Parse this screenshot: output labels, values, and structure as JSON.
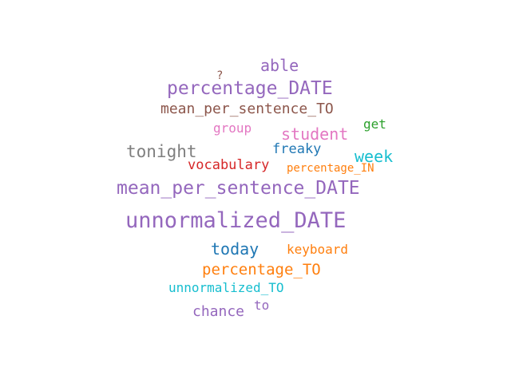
{
  "words": [
    {
      "text": "able",
      "color": "#9467bd"
    },
    {
      "text": "?",
      "color": "#8c564b"
    },
    {
      "text": "percentage_DATE",
      "color": "#9467bd"
    },
    {
      "text": "mean_per_sentence_TO",
      "color": "#8c564b"
    },
    {
      "text": "group",
      "color": "#e377c2"
    },
    {
      "text": "student",
      "color": "#e377c2"
    },
    {
      "text": "get",
      "color": "#2ca02c"
    },
    {
      "text": "tonight",
      "color": "#7f7f7f"
    },
    {
      "text": "freaky",
      "color": "#1f77b4"
    },
    {
      "text": "week",
      "color": "#17becf"
    },
    {
      "text": "vocabulary",
      "color": "#d62728"
    },
    {
      "text": "percentage_IN",
      "color": "#ff7f0e"
    },
    {
      "text": "mean_per_sentence_DATE",
      "color": "#9467bd"
    },
    {
      "text": "unnormalized_DATE",
      "color": "#9467bd"
    },
    {
      "text": "today",
      "color": "#1f77b4"
    },
    {
      "text": "keyboard",
      "color": "#ff7f0e"
    },
    {
      "text": "percentage_TO",
      "color": "#ff7f0e"
    },
    {
      "text": "unnormalized_TO",
      "color": "#17becf"
    },
    {
      "text": "to",
      "color": "#9467bd"
    },
    {
      "text": "chance",
      "color": "#9467bd"
    }
  ]
}
